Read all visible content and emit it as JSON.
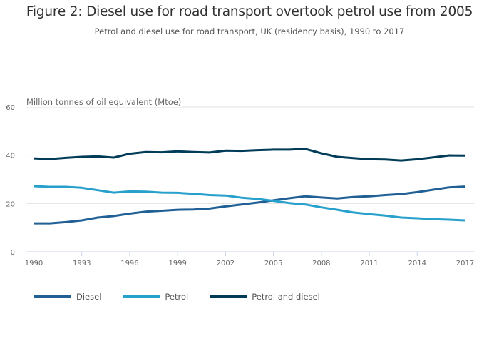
{
  "chart_data": {
    "type": "line",
    "title": "Figure 2: Diesel use for road transport overtook petrol use from 2005",
    "subtitle": "Petrol and diesel use for road transport, UK (residency basis), 1990 to 2017",
    "xlabel": "",
    "ylabel": "Million tonnes of oil equivalent (Mtoe)",
    "ylim": [
      0,
      60
    ],
    "xlim": [
      1990,
      2017
    ],
    "yticks": [
      0,
      20,
      40,
      60
    ],
    "xticks": [
      1990,
      1993,
      1996,
      1999,
      2002,
      2005,
      2008,
      2011,
      2014,
      2017
    ],
    "grid": true,
    "legend_position": "bottom-left",
    "x": [
      1990,
      1991,
      1992,
      1993,
      1994,
      1995,
      1996,
      1997,
      1998,
      1999,
      2000,
      2001,
      2002,
      2003,
      2004,
      2005,
      2006,
      2007,
      2008,
      2009,
      2010,
      2011,
      2012,
      2013,
      2014,
      2015,
      2016,
      2017
    ],
    "series": [
      {
        "name": "Diesel",
        "color": "#206095",
        "values": [
          11.8,
          11.8,
          12.3,
          13.0,
          14.2,
          14.8,
          15.8,
          16.6,
          17.0,
          17.4,
          17.5,
          17.9,
          18.8,
          19.6,
          20.4,
          21.3,
          22.2,
          23.0,
          22.5,
          22.1,
          22.7,
          23.0,
          23.5,
          23.9,
          24.7,
          25.7,
          26.7,
          27.0
        ]
      },
      {
        "name": "Petrol",
        "color": "#27a0cc",
        "values": [
          27.2,
          26.9,
          26.9,
          26.5,
          25.5,
          24.5,
          25.0,
          24.9,
          24.5,
          24.4,
          24.0,
          23.5,
          23.3,
          22.4,
          21.9,
          21.1,
          20.2,
          19.6,
          18.4,
          17.4,
          16.3,
          15.6,
          15.0,
          14.2,
          13.9,
          13.5,
          13.3,
          13.0
        ]
      },
      {
        "name": "Petrol and diesel",
        "color": "#003c57",
        "values": [
          38.7,
          38.4,
          38.9,
          39.3,
          39.5,
          39.0,
          40.6,
          41.3,
          41.2,
          41.6,
          41.3,
          41.1,
          41.9,
          41.8,
          42.1,
          42.3,
          42.3,
          42.6,
          40.8,
          39.3,
          38.8,
          38.3,
          38.2,
          37.8,
          38.3,
          39.1,
          39.9,
          39.8
        ]
      }
    ]
  }
}
